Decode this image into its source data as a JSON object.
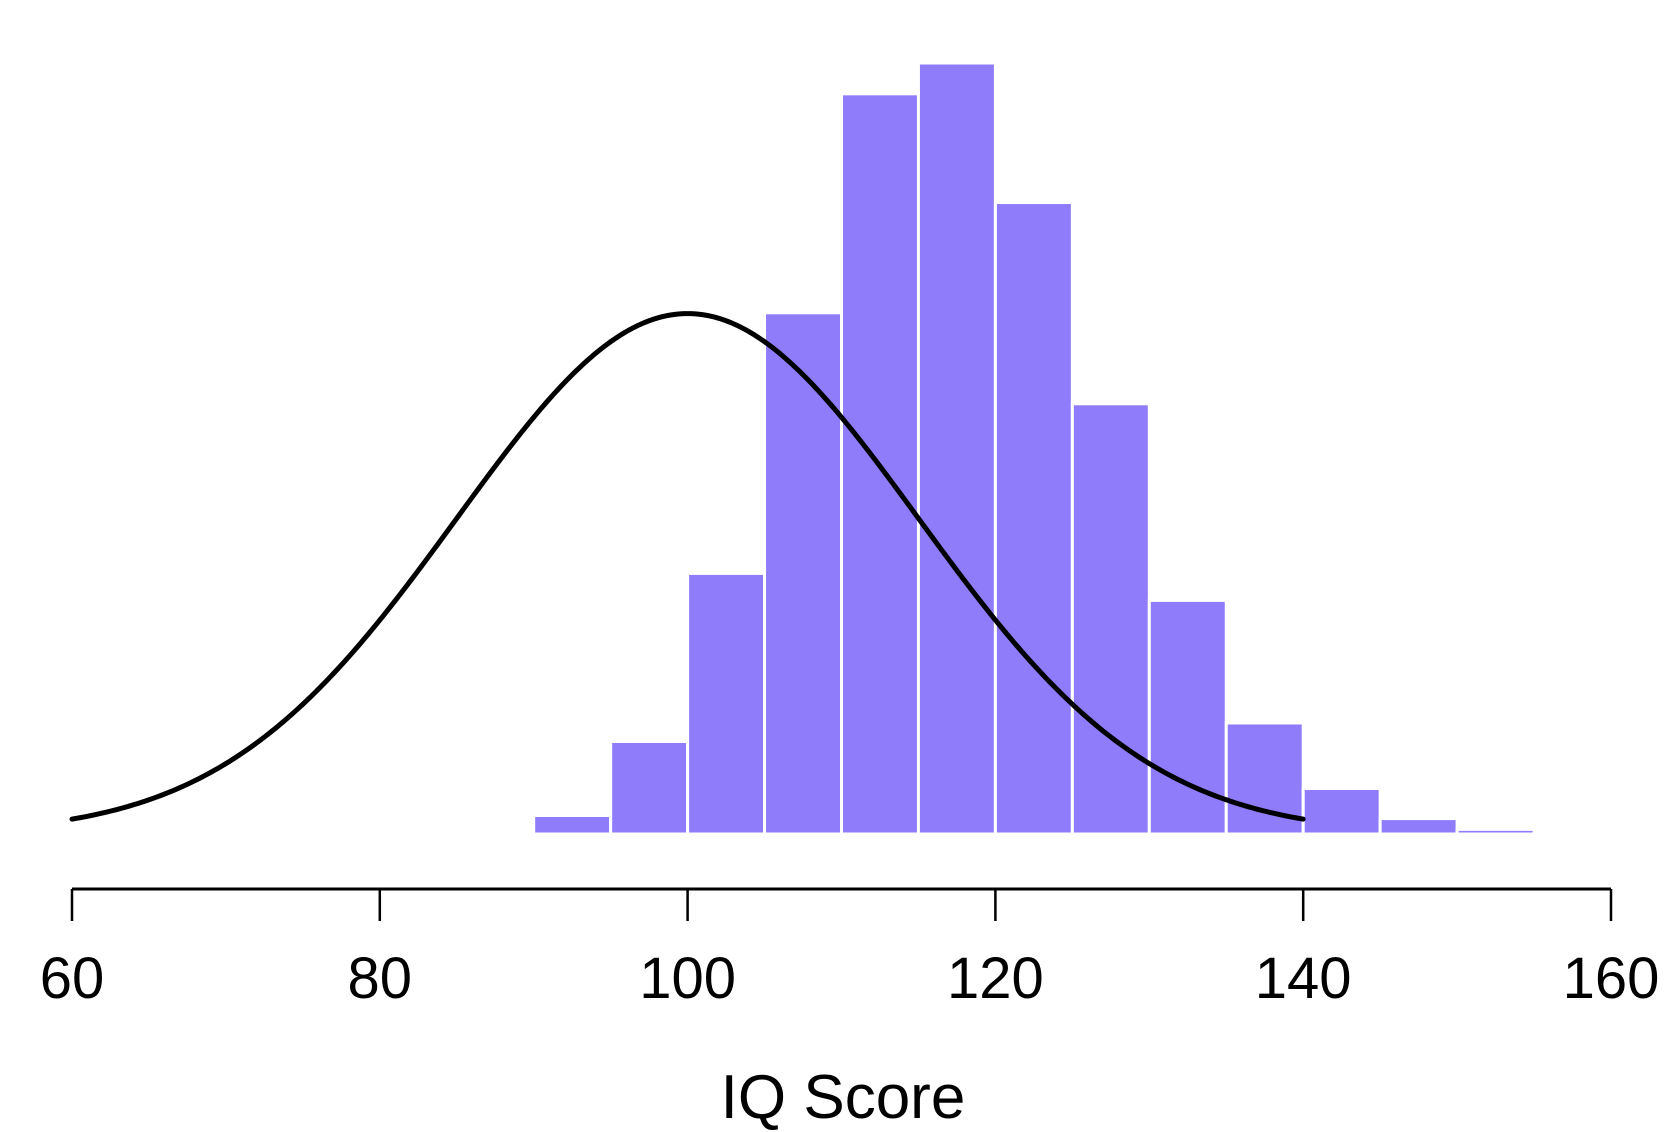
{
  "chart_data": {
    "type": "histogram",
    "title": "",
    "xlabel": "IQ Score",
    "ylabel": "",
    "xlim": [
      60,
      160
    ],
    "x_ticks": [
      60,
      80,
      100,
      120,
      140,
      160
    ],
    "x_tick_labels": [
      "60",
      "80",
      "100",
      "120",
      "140",
      "160"
    ],
    "grid": false,
    "legend": null,
    "bar_color": "#8F7CFB",
    "bar_edge_color": "#FFFFFF",
    "bin_width": 5,
    "bins": [
      {
        "start": 85,
        "end": 90,
        "relative_height": 0.001
      },
      {
        "start": 90,
        "end": 95,
        "relative_height": 0.024
      },
      {
        "start": 95,
        "end": 100,
        "relative_height": 0.12
      },
      {
        "start": 100,
        "end": 105,
        "relative_height": 0.338
      },
      {
        "start": 105,
        "end": 110,
        "relative_height": 0.676
      },
      {
        "start": 110,
        "end": 115,
        "relative_height": 0.96
      },
      {
        "start": 115,
        "end": 120,
        "relative_height": 1.0
      },
      {
        "start": 120,
        "end": 125,
        "relative_height": 0.819
      },
      {
        "start": 125,
        "end": 130,
        "relative_height": 0.558
      },
      {
        "start": 130,
        "end": 135,
        "relative_height": 0.303
      },
      {
        "start": 135,
        "end": 140,
        "relative_height": 0.144
      },
      {
        "start": 140,
        "end": 145,
        "relative_height": 0.059
      },
      {
        "start": 145,
        "end": 150,
        "relative_height": 0.02
      },
      {
        "start": 150,
        "end": 155,
        "relative_height": 0.006
      }
    ],
    "overlay_curve": {
      "type": "normal_density",
      "mean": 100,
      "sd": 15,
      "x_range": [
        60,
        140
      ],
      "peak_relative_height": 0.675,
      "color": "#000000"
    }
  }
}
